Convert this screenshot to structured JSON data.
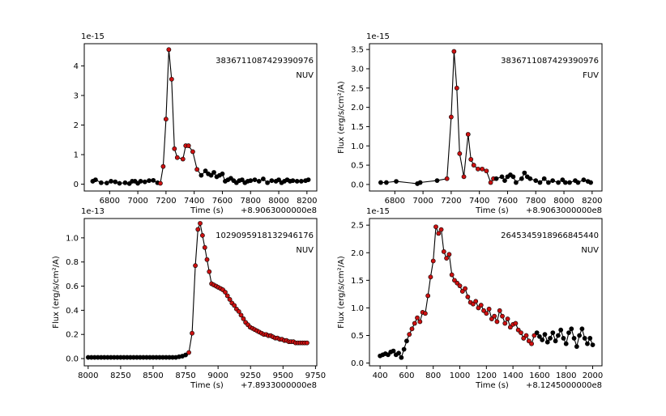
{
  "chart_data": [
    {
      "type": "line",
      "title": "",
      "annotation_id": "3836711087429390976",
      "annotation_band": "NUV",
      "xlabel": "Time (s)",
      "x_offset_label": "+8.9063000000e8",
      "ylabel": "",
      "y_scale_label": "1e-15",
      "xlim": [
        6620,
        8270
      ],
      "ylim": [
        -0.23,
        4.75
      ],
      "xticks": [
        6800,
        7000,
        7200,
        7400,
        7600,
        7800,
        8000,
        8200
      ],
      "yticks": [
        0,
        1,
        2,
        3,
        4
      ],
      "series": [
        {
          "x": [
            6680,
            6700,
            6740,
            6780,
            6810,
            6840,
            6870,
            6910,
            6940,
            6960,
            6980,
            7000,
            7020,
            7050,
            7080,
            7110,
            7140,
            7160,
            7180,
            7200,
            7220,
            7240,
            7260,
            7280,
            7320,
            7340,
            7360,
            7390,
            7420,
            7450,
            7480,
            7500,
            7520,
            7540,
            7560,
            7580,
            7600,
            7620,
            7640,
            7660,
            7680,
            7700,
            7720,
            7740,
            7760,
            7780,
            7800,
            7830,
            7860,
            7890,
            7920,
            7950,
            7980,
            8000,
            8020,
            8040,
            8060,
            8080,
            8100,
            8130,
            8160,
            8190,
            8210
          ],
          "y": [
            0.1,
            0.15,
            0.05,
            0.04,
            0.1,
            0.08,
            0.03,
            0.05,
            0.02,
            0.1,
            0.1,
            0.03,
            0.1,
            0.08,
            0.12,
            0.13,
            0.05,
            0.03,
            0.6,
            2.2,
            4.55,
            3.55,
            1.2,
            0.9,
            0.85,
            1.3,
            1.3,
            1.1,
            0.5,
            0.3,
            0.45,
            0.35,
            0.3,
            0.4,
            0.25,
            0.3,
            0.35,
            0.1,
            0.15,
            0.2,
            0.12,
            0.05,
            0.12,
            0.15,
            0.05,
            0.1,
            0.12,
            0.15,
            0.1,
            0.18,
            0.05,
            0.12,
            0.1,
            0.15,
            0.05,
            0.1,
            0.15,
            0.1,
            0.12,
            0.1,
            0.1,
            0.12,
            0.15
          ],
          "red": [
            7160,
            7180,
            7200,
            7220,
            7240,
            7260,
            7280,
            7320,
            7340,
            7360,
            7390,
            7420
          ]
        }
      ]
    },
    {
      "type": "line",
      "title": "",
      "annotation_id": "3836711087429390976",
      "annotation_band": "FUV",
      "xlabel": "Time (s)",
      "x_offset_label": "+8.9063000000e8",
      "ylabel": "Flux (erg/s/cm²/A)",
      "y_scale_label": "1e-15",
      "xlim": [
        6620,
        8270
      ],
      "ylim": [
        -0.17,
        3.65
      ],
      "xticks": [
        6800,
        7000,
        7200,
        7400,
        7600,
        7800,
        8000,
        8200
      ],
      "yticks": [
        0.0,
        0.5,
        1.0,
        1.5,
        2.0,
        2.5,
        3.0,
        3.5
      ],
      "ytick_labels": [
        "0.0",
        "0.5",
        "1.0",
        "1.5",
        "2.0",
        "2.5",
        "3.0",
        "3.5"
      ],
      "series": [
        {
          "x": [
            6700,
            6740,
            6810,
            6960,
            6980,
            7100,
            7170,
            7200,
            7220,
            7240,
            7260,
            7290,
            7320,
            7340,
            7360,
            7390,
            7420,
            7450,
            7480,
            7500,
            7520,
            7560,
            7580,
            7600,
            7620,
            7640,
            7660,
            7700,
            7720,
            7740,
            7760,
            7800,
            7830,
            7860,
            7890,
            7920,
            7960,
            7990,
            8010,
            8040,
            8080,
            8100,
            8140,
            8170,
            8190
          ],
          "y": [
            0.05,
            0.05,
            0.08,
            0.02,
            0.05,
            0.1,
            0.15,
            1.75,
            3.45,
            2.5,
            0.8,
            0.2,
            1.3,
            0.65,
            0.5,
            0.4,
            0.4,
            0.35,
            0.05,
            0.15,
            0.15,
            0.2,
            0.1,
            0.2,
            0.25,
            0.2,
            0.05,
            0.15,
            0.3,
            0.2,
            0.15,
            0.1,
            0.05,
            0.15,
            0.05,
            0.1,
            0.05,
            0.12,
            0.05,
            0.05,
            0.1,
            0.05,
            0.12,
            0.08,
            0.05
          ],
          "red": [
            7170,
            7200,
            7220,
            7240,
            7260,
            7290,
            7320,
            7340,
            7360,
            7390,
            7420,
            7450,
            7480,
            7500
          ]
        }
      ]
    },
    {
      "type": "line",
      "title": "",
      "annotation_id": "1029095918132946176",
      "annotation_band": "NUV",
      "xlabel": "Time (s)",
      "x_offset_label": "+7.8933000000e8",
      "ylabel": "Flux (erg/s/cm²/A)",
      "y_scale_label": "1e-13",
      "xlim": [
        7970,
        9760
      ],
      "ylim": [
        -0.06,
        1.16
      ],
      "xticks": [
        8000,
        8250,
        8500,
        8750,
        9000,
        9250,
        9500,
        9750
      ],
      "yticks": [
        0.0,
        0.2,
        0.4,
        0.6,
        0.8,
        1.0
      ],
      "ytick_labels": [
        "0.0",
        "0.2",
        "0.4",
        "0.6",
        "0.8",
        "1.0"
      ],
      "series": [
        {
          "x": [
            8000,
            8025,
            8050,
            8075,
            8100,
            8125,
            8150,
            8175,
            8200,
            8225,
            8250,
            8275,
            8300,
            8325,
            8350,
            8375,
            8400,
            8425,
            8450,
            8475,
            8500,
            8525,
            8550,
            8575,
            8600,
            8625,
            8650,
            8675,
            8700,
            8725,
            8750,
            8775,
            8800,
            8825,
            8845,
            8862,
            8880,
            8898,
            8915,
            8932,
            8950,
            8967,
            8985,
            9002,
            9020,
            9037,
            9055,
            9072,
            9090,
            9107,
            9125,
            9142,
            9160,
            9177,
            9195,
            9212,
            9230,
            9247,
            9265,
            9282,
            9300,
            9317,
            9335,
            9352,
            9370,
            9387,
            9405,
            9422,
            9440,
            9457,
            9475,
            9492,
            9510,
            9527,
            9545,
            9562,
            9580,
            9597,
            9615,
            9632,
            9650,
            9667,
            9685
          ],
          "y": [
            0.01,
            0.01,
            0.01,
            0.01,
            0.01,
            0.01,
            0.01,
            0.01,
            0.01,
            0.01,
            0.01,
            0.01,
            0.01,
            0.01,
            0.01,
            0.01,
            0.01,
            0.01,
            0.01,
            0.01,
            0.01,
            0.01,
            0.01,
            0.01,
            0.01,
            0.01,
            0.01,
            0.01,
            0.015,
            0.02,
            0.03,
            0.05,
            0.21,
            0.77,
            1.07,
            1.12,
            1.02,
            0.92,
            0.82,
            0.72,
            0.62,
            0.61,
            0.6,
            0.59,
            0.58,
            0.57,
            0.55,
            0.52,
            0.49,
            0.46,
            0.44,
            0.41,
            0.39,
            0.36,
            0.33,
            0.3,
            0.28,
            0.26,
            0.25,
            0.24,
            0.23,
            0.22,
            0.21,
            0.2,
            0.2,
            0.19,
            0.19,
            0.18,
            0.17,
            0.17,
            0.16,
            0.16,
            0.15,
            0.15,
            0.14,
            0.14,
            0.14,
            0.13,
            0.13,
            0.13,
            0.13,
            0.13,
            0.13
          ],
          "red_from": 8775
        }
      ]
    },
    {
      "type": "line",
      "title": "",
      "annotation_id": "2645345918966845440",
      "annotation_band": "NUV",
      "xlabel": "Time (s)",
      "x_offset_label": "+8.1245000000e8",
      "ylabel": "Flux (erg/s/cm²/A)",
      "y_scale_label": "1e-15",
      "xlim": [
        320,
        2070
      ],
      "ylim": [
        -0.05,
        2.62
      ],
      "xticks": [
        400,
        600,
        800,
        1000,
        1200,
        1400,
        1600,
        1800,
        2000
      ],
      "yticks": [
        0.0,
        0.5,
        1.0,
        1.5,
        2.0,
        2.5
      ],
      "ytick_labels": [
        "0.0",
        "0.5",
        "1.0",
        "1.5",
        "2.0",
        "2.5"
      ],
      "series": [
        {
          "x": [
            400,
            420,
            440,
            460,
            480,
            500,
            520,
            540,
            560,
            580,
            600,
            620,
            640,
            660,
            680,
            700,
            720,
            740,
            760,
            780,
            800,
            820,
            840,
            860,
            880,
            900,
            920,
            940,
            960,
            980,
            1000,
            1020,
            1040,
            1060,
            1080,
            1100,
            1120,
            1140,
            1160,
            1180,
            1200,
            1220,
            1240,
            1260,
            1280,
            1300,
            1320,
            1340,
            1360,
            1380,
            1400,
            1420,
            1440,
            1460,
            1480,
            1500,
            1520,
            1540,
            1560,
            1580,
            1600,
            1620,
            1640,
            1660,
            1680,
            1700,
            1720,
            1740,
            1760,
            1780,
            1800,
            1820,
            1840,
            1860,
            1880,
            1900,
            1920,
            1940,
            1960,
            1980,
            2000
          ],
          "y": [
            0.13,
            0.15,
            0.17,
            0.15,
            0.2,
            0.22,
            0.15,
            0.18,
            0.1,
            0.25,
            0.4,
            0.52,
            0.62,
            0.72,
            0.82,
            0.75,
            0.92,
            0.9,
            1.22,
            1.56,
            1.85,
            2.47,
            2.35,
            2.42,
            2.02,
            1.9,
            1.97,
            1.6,
            1.5,
            1.45,
            1.4,
            1.3,
            1.35,
            1.2,
            1.1,
            1.07,
            1.12,
            1.0,
            1.05,
            0.95,
            0.9,
            0.98,
            0.8,
            0.85,
            0.75,
            0.95,
            0.85,
            0.72,
            0.8,
            0.65,
            0.7,
            0.72,
            0.6,
            0.55,
            0.45,
            0.5,
            0.4,
            0.35,
            0.5,
            0.55,
            0.48,
            0.42,
            0.52,
            0.38,
            0.45,
            0.55,
            0.4,
            0.5,
            0.6,
            0.45,
            0.35,
            0.55,
            0.62,
            0.45,
            0.3,
            0.5,
            0.62,
            0.45,
            0.35,
            0.45,
            0.33
          ],
          "red_range": [
            620,
            1560
          ]
        }
      ]
    }
  ]
}
